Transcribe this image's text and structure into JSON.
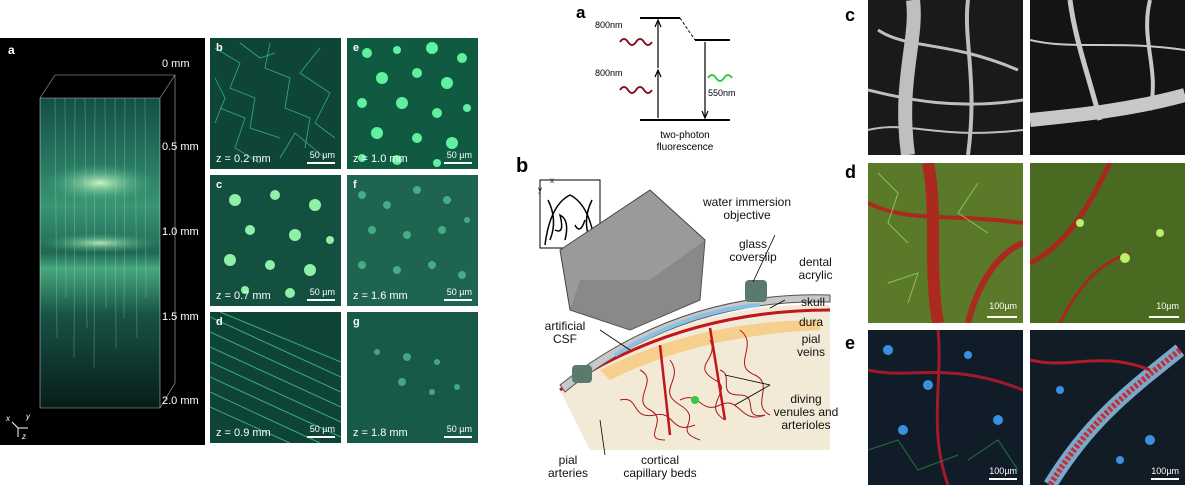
{
  "panel_left": {
    "letter": "a",
    "depth_labels": [
      "0 mm",
      "0.5 mm",
      "1.0 mm",
      "1.5 mm",
      "2.0 mm"
    ],
    "axes": {
      "x": "x",
      "y": "y",
      "z": "z"
    }
  },
  "grid_panels": [
    {
      "letter": "b",
      "z": "z = 0.2 mm",
      "scale": "50 µm"
    },
    {
      "letter": "e",
      "z": "z = 1.0 mm",
      "scale": "50 µm"
    },
    {
      "letter": "c",
      "z": "z = 0.7 mm",
      "scale": "50 µm"
    },
    {
      "letter": "f",
      "z": "z = 1.6 mm",
      "scale": "50 µm"
    },
    {
      "letter": "d",
      "z": "z = 0.9 mm",
      "scale": "50 µm"
    },
    {
      "letter": "g",
      "z": "z = 1.8 mm",
      "scale": "50 µm"
    }
  ],
  "energy_diagram": {
    "letter": "a",
    "excitation_1": "800nm",
    "excitation_2": "800nm",
    "emission": "550nm",
    "caption_line1": "two-photon",
    "caption_line2": "fluorescence"
  },
  "schematic": {
    "letter": "b",
    "axis_x": "x",
    "axis_y": "y",
    "objective": [
      "water immersion",
      "objective"
    ],
    "coverslip": [
      "glass",
      "coverslip"
    ],
    "acrylic": [
      "dental",
      "acrylic"
    ],
    "skull": "skull",
    "dura": "dura",
    "pial_veins": [
      "pial",
      "veins"
    ],
    "csf": [
      "artificial",
      "CSF"
    ],
    "diving": [
      "diving",
      "venules and",
      "arterioles"
    ],
    "pial_arteries": [
      "pial",
      "arteries"
    ],
    "capillary": [
      "cortical",
      "capillary beds"
    ]
  },
  "right_panels": {
    "c_letter": "c",
    "d_letter": "d",
    "e_letter": "e",
    "d_scale_left": "100µm",
    "d_scale_right": "10µm",
    "e_scale_left": "100µm",
    "e_scale_right": "100µm"
  },
  "colors": {
    "neuron_green": "#2fd08f",
    "vessel_red": "#c0161c",
    "background_black": "#000000"
  }
}
